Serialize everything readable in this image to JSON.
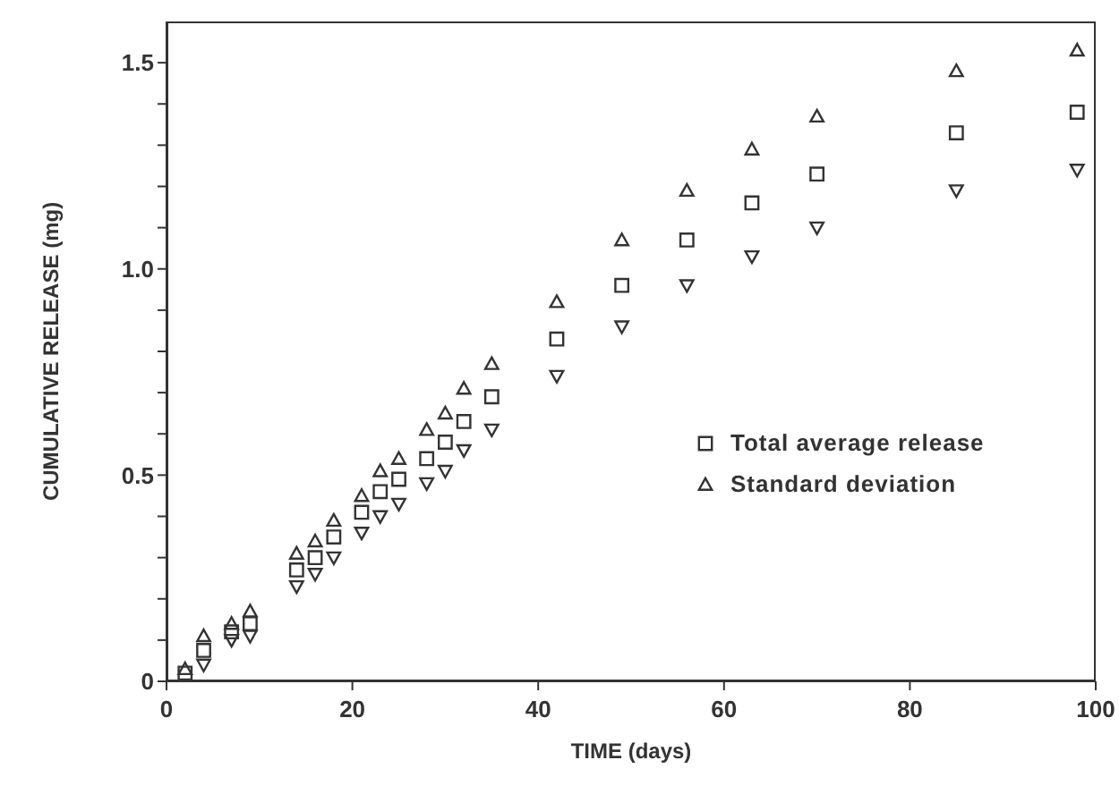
{
  "chart_data": {
    "type": "scatter",
    "xlabel": "TIME (days)",
    "ylabel": "CUMULATIVE RELEASE (mg)",
    "xlim": [
      0,
      100
    ],
    "xticks": [
      0,
      20,
      40,
      60,
      80,
      100
    ],
    "ylim": [
      0,
      1.6
    ],
    "yticks": [
      0,
      {
        "value": 0.1,
        "label": null
      },
      {
        "value": 0.2,
        "label": null
      },
      {
        "value": 0.3,
        "label": null
      },
      {
        "value": 0.4,
        "label": null
      },
      0.5,
      {
        "value": 0.6,
        "label": null
      },
      {
        "value": 0.7,
        "label": null
      },
      {
        "value": 0.8,
        "label": null
      },
      {
        "value": 0.9,
        "label": null
      },
      {
        "value": 1.0,
        "label": "1.0"
      },
      {
        "value": 1.1,
        "label": null
      },
      {
        "value": 1.2,
        "label": null
      },
      {
        "value": 1.3,
        "label": null
      },
      {
        "value": 1.4,
        "label": null
      },
      1.5
    ],
    "x": [
      2,
      4,
      7,
      9,
      14,
      16,
      18,
      21,
      23,
      25,
      28,
      30,
      32,
      35,
      42,
      49,
      56,
      63,
      70,
      85,
      98
    ],
    "grid": false,
    "legend": "right",
    "series": [
      {
        "name": "Total average release",
        "color": "#333333",
        "marker": "square",
        "values": [
          0.02,
          0.075,
          0.12,
          0.14,
          0.27,
          0.3,
          0.35,
          0.41,
          0.46,
          0.49,
          0.54,
          0.58,
          0.63,
          0.69,
          0.83,
          0.96,
          1.07,
          1.16,
          1.23,
          1.33,
          1.38
        ]
      },
      {
        "name": "Standard deviation",
        "color": "#333333",
        "marker": "triangle",
        "values": [
          0.03,
          0.11,
          0.14,
          0.17,
          0.31,
          0.34,
          0.39,
          0.45,
          0.51,
          0.54,
          0.61,
          0.65,
          0.71,
          0.77,
          0.92,
          1.07,
          1.19,
          1.29,
          1.37,
          1.48,
          1.53
        ]
      },
      {
        "color": "#333333",
        "marker": "triangle-down",
        "values": [
          null,
          0.04,
          0.1,
          0.11,
          0.23,
          0.26,
          0.3,
          0.36,
          0.4,
          0.43,
          0.48,
          0.51,
          0.56,
          0.61,
          0.74,
          0.86,
          0.96,
          1.03,
          1.1,
          1.19,
          1.24
        ]
      }
    ]
  }
}
